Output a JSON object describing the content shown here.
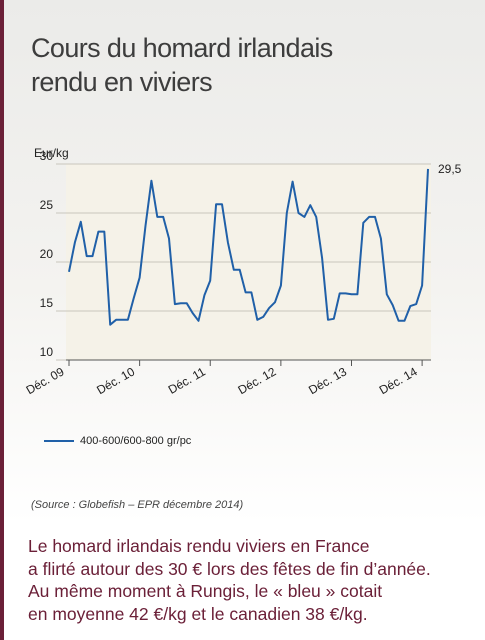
{
  "title_lines": [
    "Cours du homard irlandais",
    "rendu en viviers"
  ],
  "chart_data": {
    "type": "line",
    "ylabel": "Eur/kg",
    "ylim": [
      10,
      30
    ],
    "yticks": [
      10,
      15,
      20,
      25,
      30
    ],
    "xticks": [
      "Déc. 09",
      "Déc. 10",
      "Déc. 11",
      "Déc. 12",
      "Déc. 13",
      "Déc. 14"
    ],
    "grid": true,
    "end_label": "29,5",
    "series": [
      {
        "name": "400-600/600-800 gr/pc",
        "color": "#2060a8",
        "values": [
          19.0,
          22.0,
          24.1,
          20.6,
          20.6,
          23.1,
          23.1,
          13.6,
          14.1,
          14.1,
          14.1,
          16.3,
          18.4,
          23.7,
          28.3,
          24.6,
          24.6,
          22.4,
          15.7,
          15.8,
          15.8,
          14.8,
          14.0,
          16.6,
          18.1,
          25.9,
          25.9,
          22.0,
          19.2,
          19.2,
          16.9,
          16.9,
          14.1,
          14.4,
          15.3,
          15.9,
          17.6,
          25.0,
          28.2,
          25.0,
          24.6,
          25.8,
          24.6,
          20.4,
          14.1,
          14.2,
          16.8,
          16.8,
          16.7,
          16.7,
          24.0,
          24.6,
          24.6,
          22.4,
          16.7,
          15.6,
          14.0,
          14.0,
          15.5,
          15.7,
          17.6,
          29.5
        ]
      }
    ]
  },
  "legend": {
    "label": "400-600/600-800 gr/pc"
  },
  "source": "(Source : Globefish – EPR décembre 2014)",
  "caption_lines": [
    "Le homard irlandais rendu viviers en France",
    "a flirté autour des 30 € lors des fêtes de fin d’année.",
    "Au même moment à Rungis, le « bleu » cotait",
    "en moyenne 42 €/kg et le canadien 38 €/kg."
  ]
}
